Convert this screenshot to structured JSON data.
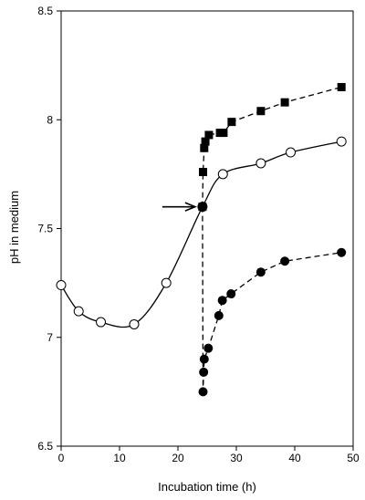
{
  "chart_data": {
    "type": "line",
    "title": "",
    "xlabel": "Incubation time (h)",
    "ylabel": "pH in medium",
    "xlim": [
      0,
      50
    ],
    "ylim": [
      6.5,
      8.5
    ],
    "x_ticks": [
      0,
      10,
      20,
      30,
      40,
      50
    ],
    "y_ticks": [
      6.5,
      7,
      7.5,
      8,
      8.5
    ],
    "x_tick_labels": [
      "0",
      "10",
      "20",
      "30",
      "40",
      "50"
    ],
    "y_tick_labels": [
      "6.5",
      "7",
      "7.5",
      "8",
      "8.5"
    ],
    "grid": false,
    "legend": "none",
    "annotations": [
      {
        "type": "arrow",
        "points_to": {
          "x": 24.2,
          "y": 7.6
        }
      }
    ],
    "series": [
      {
        "marker": "open-circle",
        "line": "solid-smooth",
        "color": "#000000",
        "points": [
          {
            "x": 0,
            "y": 7.24
          },
          {
            "x": 3,
            "y": 7.12
          },
          {
            "x": 6.8,
            "y": 7.07
          },
          {
            "x": 12.5,
            "y": 7.06
          },
          {
            "x": 18,
            "y": 7.25
          },
          {
            "x": 24.2,
            "y": 7.6
          },
          {
            "x": 27.7,
            "y": 7.75
          },
          {
            "x": 34.2,
            "y": 7.8
          },
          {
            "x": 39.3,
            "y": 7.85
          },
          {
            "x": 48,
            "y": 7.9
          }
        ]
      },
      {
        "marker": "filled-square",
        "line": "dashed",
        "color": "#000000",
        "points": [
          {
            "x": 24.2,
            "y": 7.6
          },
          {
            "x": 24.3,
            "y": 7.76
          },
          {
            "x": 24.5,
            "y": 7.87
          },
          {
            "x": 24.7,
            "y": 7.9
          },
          {
            "x": 25.3,
            "y": 7.93
          },
          {
            "x": 27.2,
            "y": 7.94
          },
          {
            "x": 27.8,
            "y": 7.94
          },
          {
            "x": 29.2,
            "y": 7.99
          },
          {
            "x": 34.2,
            "y": 8.04
          },
          {
            "x": 38.3,
            "y": 8.08
          },
          {
            "x": 48,
            "y": 8.15
          }
        ]
      },
      {
        "marker": "filled-circle",
        "line": "dashed",
        "color": "#000000",
        "points": [
          {
            "x": 24.2,
            "y": 7.6
          },
          {
            "x": 24.3,
            "y": 6.75
          },
          {
            "x": 24.4,
            "y": 6.84
          },
          {
            "x": 24.5,
            "y": 6.9
          },
          {
            "x": 25.2,
            "y": 6.95
          },
          {
            "x": 27,
            "y": 7.1
          },
          {
            "x": 27.6,
            "y": 7.17
          },
          {
            "x": 29.1,
            "y": 7.2
          },
          {
            "x": 34.2,
            "y": 7.3
          },
          {
            "x": 38.3,
            "y": 7.35
          },
          {
            "x": 48,
            "y": 7.39
          }
        ]
      }
    ]
  }
}
